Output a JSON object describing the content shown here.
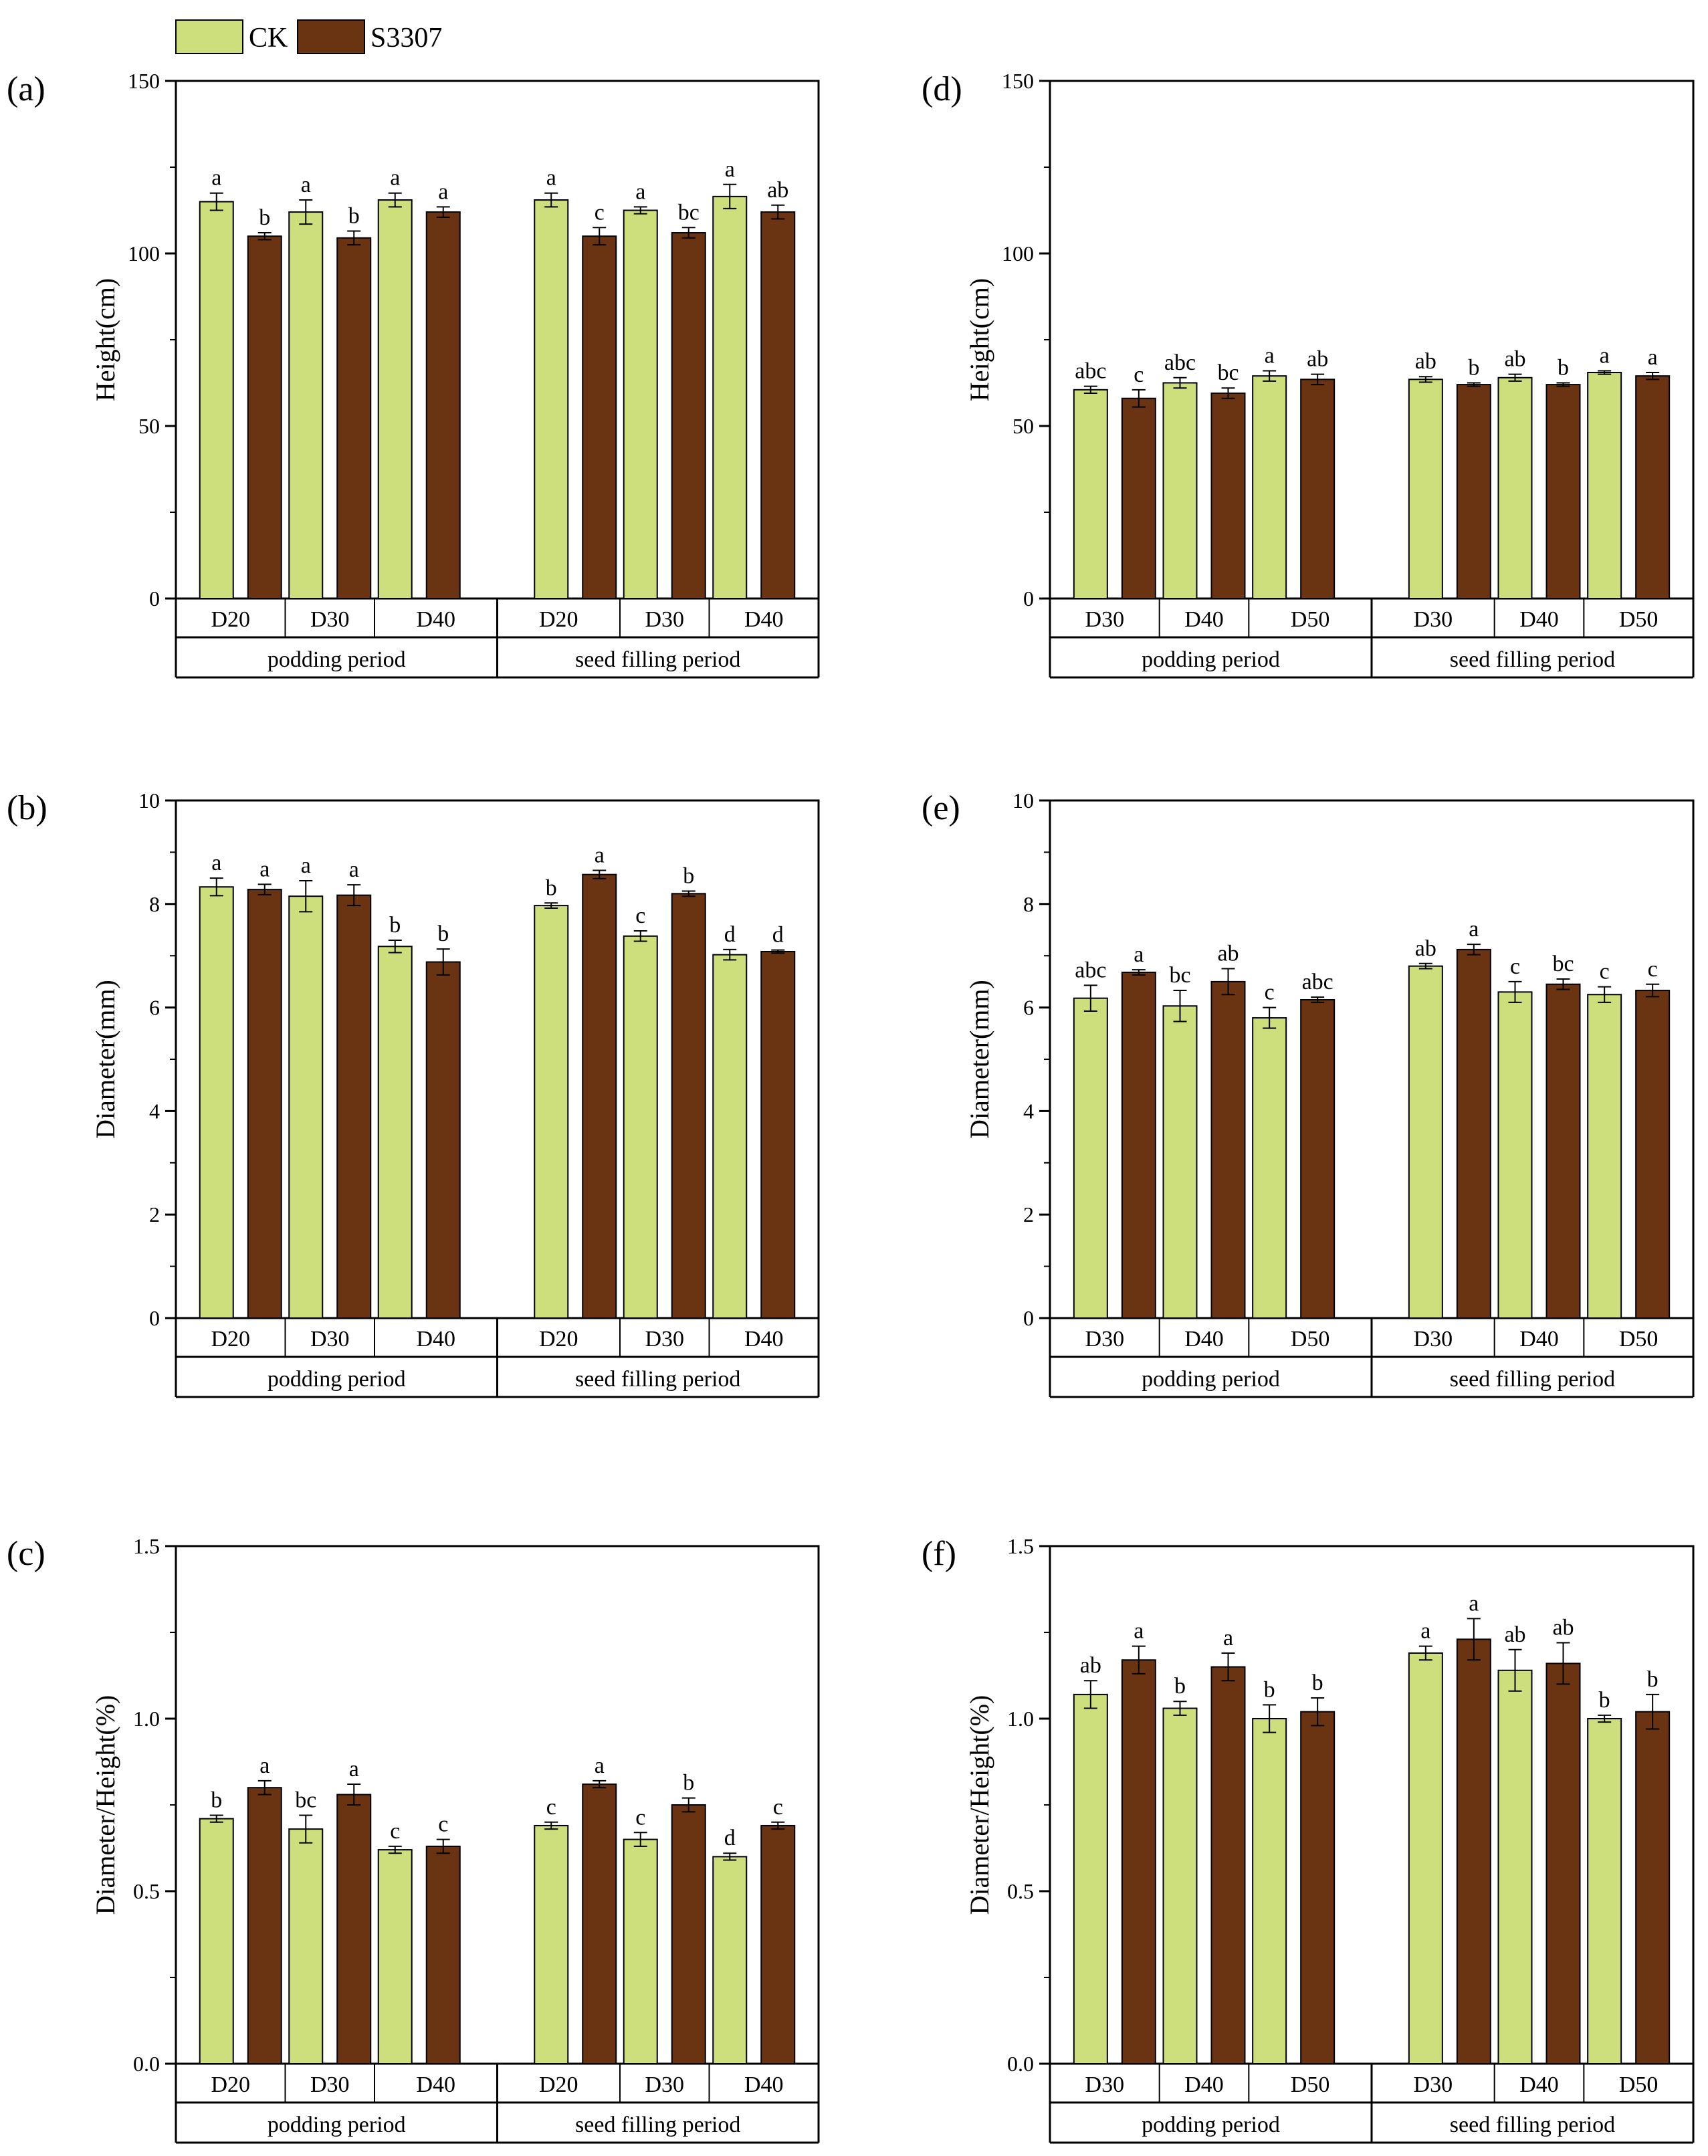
{
  "legend": {
    "items": [
      {
        "label": "CK",
        "color": "#ccdf7c"
      },
      {
        "label": "S3307",
        "color": "#6a3413"
      }
    ]
  },
  "colors": {
    "ck": "#ccdf7c",
    "s3307": "#6a3413",
    "axis": "#000000"
  },
  "chart_data": [
    {
      "type": "bar",
      "panel": "(a)",
      "ylabel": "Height(cm)",
      "ylim": [
        0,
        150
      ],
      "yticks": [
        "0",
        "50",
        "100",
        "150"
      ],
      "ytick_values": [
        0,
        50,
        100,
        150
      ],
      "groups": [
        "podding period",
        "seed filling period"
      ],
      "categories": [
        "D20",
        "D30",
        "D40",
        "D20",
        "D30",
        "D40"
      ],
      "series": [
        {
          "name": "CK",
          "values": [
            115,
            112,
            115.5,
            115.5,
            112.5,
            116.5
          ],
          "errors": [
            2.5,
            3.5,
            2.0,
            2.0,
            1.0,
            3.5
          ],
          "letters": [
            "a",
            "a",
            "a",
            "a",
            "a",
            "a"
          ]
        },
        {
          "name": "S3307",
          "values": [
            105,
            104.5,
            112,
            105,
            106,
            112
          ],
          "errors": [
            1.0,
            2.0,
            1.5,
            2.5,
            1.5,
            2.0
          ],
          "letters": [
            "b",
            "b",
            "a",
            "c",
            "bc",
            "ab"
          ]
        }
      ]
    },
    {
      "type": "bar",
      "panel": "(b)",
      "ylabel": "Diameter(mm)",
      "ylim": [
        0,
        10
      ],
      "yticks": [
        "0",
        "2",
        "4",
        "6",
        "8",
        "10"
      ],
      "ytick_values": [
        0,
        2,
        4,
        6,
        8,
        10
      ],
      "groups": [
        "podding period",
        "seed filling period"
      ],
      "categories": [
        "D20",
        "D30",
        "D40",
        "D20",
        "D30",
        "D40"
      ],
      "series": [
        {
          "name": "CK",
          "values": [
            8.33,
            8.15,
            7.18,
            7.97,
            7.38,
            7.02
          ],
          "errors": [
            0.17,
            0.3,
            0.12,
            0.05,
            0.1,
            0.1
          ],
          "letters": [
            "a",
            "a",
            "b",
            "b",
            "c",
            "d"
          ]
        },
        {
          "name": "S3307",
          "values": [
            8.28,
            8.17,
            6.88,
            8.57,
            8.2,
            7.08
          ],
          "errors": [
            0.1,
            0.2,
            0.25,
            0.08,
            0.05,
            0.03
          ],
          "letters": [
            "a",
            "a",
            "b",
            "a",
            "b",
            "d"
          ]
        }
      ]
    },
    {
      "type": "bar",
      "panel": "(c)",
      "ylabel": "Diameter/Height(%)",
      "ylim": [
        0,
        1.5
      ],
      "yticks": [
        "0.0",
        "0.5",
        "1.0",
        "1.5"
      ],
      "ytick_values": [
        0,
        0.5,
        1.0,
        1.5
      ],
      "groups": [
        "podding period",
        "seed filling period"
      ],
      "categories": [
        "D20",
        "D30",
        "D40",
        "D20",
        "D30",
        "D40"
      ],
      "series": [
        {
          "name": "CK",
          "values": [
            0.71,
            0.68,
            0.62,
            0.69,
            0.65,
            0.6
          ],
          "errors": [
            0.01,
            0.04,
            0.01,
            0.01,
            0.02,
            0.01
          ],
          "letters": [
            "b",
            "bc",
            "c",
            "c",
            "c",
            "d"
          ]
        },
        {
          "name": "S3307",
          "values": [
            0.8,
            0.78,
            0.63,
            0.81,
            0.75,
            0.69
          ],
          "errors": [
            0.02,
            0.03,
            0.02,
            0.01,
            0.02,
            0.01
          ],
          "letters": [
            "a",
            "a",
            "c",
            "a",
            "b",
            "c"
          ]
        }
      ]
    },
    {
      "type": "bar",
      "panel": "(d)",
      "ylabel": "Height(cm)",
      "ylim": [
        0,
        150
      ],
      "yticks": [
        "0",
        "50",
        "100",
        "150"
      ],
      "ytick_values": [
        0,
        50,
        100,
        150
      ],
      "groups": [
        "podding period",
        "seed filling period"
      ],
      "categories": [
        "D30",
        "D40",
        "D50",
        "D30",
        "D40",
        "D50"
      ],
      "series": [
        {
          "name": "CK",
          "values": [
            60.5,
            62.5,
            64.5,
            63.5,
            64,
            65.5
          ],
          "errors": [
            1.0,
            1.5,
            1.5,
            0.8,
            1.0,
            0.5
          ],
          "letters": [
            "abc",
            "abc",
            "a",
            "ab",
            "ab",
            "a"
          ]
        },
        {
          "name": "S3307",
          "values": [
            58,
            59.5,
            63.5,
            62,
            62,
            64.5
          ],
          "errors": [
            2.5,
            1.5,
            1.5,
            0.5,
            0.5,
            1.0
          ],
          "letters": [
            "c",
            "bc",
            "ab",
            "b",
            "b",
            "a"
          ]
        }
      ]
    },
    {
      "type": "bar",
      "panel": "(e)",
      "ylabel": "Diameter(mm)",
      "ylim": [
        0,
        10
      ],
      "yticks": [
        "0",
        "2",
        "4",
        "6",
        "8",
        "10"
      ],
      "ytick_values": [
        0,
        2,
        4,
        6,
        8,
        10
      ],
      "groups": [
        "podding period",
        "seed filling period"
      ],
      "categories": [
        "D30",
        "D40",
        "D50",
        "D30",
        "D40",
        "D50"
      ],
      "series": [
        {
          "name": "CK",
          "values": [
            6.18,
            6.03,
            5.8,
            6.8,
            6.3,
            6.25
          ],
          "errors": [
            0.25,
            0.3,
            0.2,
            0.05,
            0.2,
            0.15
          ],
          "letters": [
            "abc",
            "bc",
            "c",
            "ab",
            "c",
            "c"
          ]
        },
        {
          "name": "S3307",
          "values": [
            6.68,
            6.5,
            6.15,
            7.12,
            6.45,
            6.33
          ],
          "errors": [
            0.05,
            0.25,
            0.05,
            0.1,
            0.1,
            0.12
          ],
          "letters": [
            "a",
            "ab",
            "abc",
            "a",
            "bc",
            "c"
          ]
        }
      ]
    },
    {
      "type": "bar",
      "panel": "(f)",
      "ylabel": "Diameter/Height(%)",
      "ylim": [
        0,
        1.5
      ],
      "yticks": [
        "0.0",
        "0.5",
        "1.0",
        "1.5"
      ],
      "ytick_values": [
        0,
        0.5,
        1.0,
        1.5
      ],
      "groups": [
        "podding period",
        "seed filling period"
      ],
      "categories": [
        "D30",
        "D40",
        "D50",
        "D30",
        "D40",
        "D50"
      ],
      "series": [
        {
          "name": "CK",
          "values": [
            1.07,
            1.03,
            1.0,
            1.19,
            1.14,
            1.0
          ],
          "errors": [
            0.04,
            0.02,
            0.04,
            0.02,
            0.06,
            0.01
          ],
          "letters": [
            "ab",
            "b",
            "b",
            "a",
            "ab",
            "b"
          ]
        },
        {
          "name": "S3307",
          "values": [
            1.17,
            1.15,
            1.02,
            1.23,
            1.16,
            1.02
          ],
          "errors": [
            0.04,
            0.04,
            0.04,
            0.06,
            0.06,
            0.05
          ],
          "letters": [
            "a",
            "a",
            "b",
            "a",
            "ab",
            "b"
          ]
        }
      ]
    }
  ]
}
